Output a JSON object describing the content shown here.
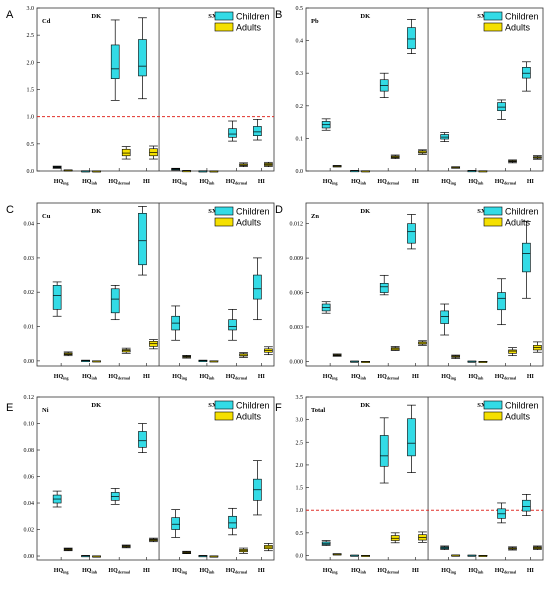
{
  "colors": {
    "children": "#33dbe6",
    "adults": "#f5e000",
    "reference": "#e0302a",
    "frame": "#333333"
  },
  "chart_data": [
    {
      "type": "box",
      "panel": "A",
      "metal": "Cd",
      "sections": [
        "DK",
        "SXC"
      ],
      "categories": [
        "HQing",
        "HQinh",
        "HQdermal",
        "HI"
      ],
      "legend": [
        "Children",
        "Adults"
      ],
      "ylim": [
        0,
        3.0
      ],
      "yticks": [
        0.0,
        0.5,
        1.0,
        1.5,
        2.0,
        2.5,
        3.0
      ],
      "ytick_labels": [
        "0.0",
        "0.5",
        "1.0",
        "1.5",
        "2.0",
        "2.5",
        "3.0"
      ],
      "reference_line": 1.0,
      "series": [
        {
          "name": "Children",
          "boxes": [
            [
              0.05,
              0.06,
              0.07,
              0.08,
              0.09
            ],
            [
              0.001,
              0.002,
              0.002,
              0.003,
              0.004
            ],
            [
              1.3,
              1.7,
              1.88,
              2.32,
              2.78
            ],
            [
              1.33,
              1.75,
              1.93,
              2.42,
              2.82
            ],
            [
              0.02,
              0.03,
              0.03,
              0.04,
              0.05
            ],
            [
              0.001,
              0.002,
              0.002,
              0.003,
              0.004
            ],
            [
              0.55,
              0.62,
              0.68,
              0.78,
              0.92
            ],
            [
              0.57,
              0.65,
              0.72,
              0.82,
              0.95
            ]
          ]
        },
        {
          "name": "Adults",
          "boxes": [
            [
              0.01,
              0.01,
              0.015,
              0.02,
              0.02
            ],
            [
              0.001,
              0.001,
              0.001,
              0.002,
              0.002
            ],
            [
              0.22,
              0.28,
              0.33,
              0.4,
              0.45
            ],
            [
              0.22,
              0.28,
              0.34,
              0.41,
              0.46
            ],
            [
              0.004,
              0.005,
              0.006,
              0.007,
              0.008
            ],
            [
              0.001,
              0.001,
              0.001,
              0.002,
              0.002
            ],
            [
              0.08,
              0.1,
              0.11,
              0.13,
              0.15
            ],
            [
              0.08,
              0.1,
              0.12,
              0.14,
              0.16
            ]
          ]
        }
      ]
    },
    {
      "type": "box",
      "panel": "B",
      "metal": "Pb",
      "sections": [
        "DK",
        "SXC"
      ],
      "categories": [
        "HQing",
        "HQinh",
        "HQdermal",
        "HI"
      ],
      "legend": [
        "Children",
        "Adults"
      ],
      "ylim": [
        0,
        0.5
      ],
      "yticks": [
        0.0,
        0.1,
        0.2,
        0.3,
        0.4,
        0.5
      ],
      "ytick_labels": [
        "0.0",
        "0.1",
        "0.2",
        "0.3",
        "0.4",
        "0.5"
      ],
      "series": [
        {
          "name": "Children",
          "boxes": [
            [
              0.125,
              0.132,
              0.142,
              0.152,
              0.16
            ],
            [
              0.0005,
              0.0008,
              0.001,
              0.0012,
              0.0015
            ],
            [
              0.225,
              0.245,
              0.262,
              0.28,
              0.3
            ],
            [
              0.36,
              0.375,
              0.405,
              0.44,
              0.465
            ],
            [
              0.09,
              0.098,
              0.104,
              0.112,
              0.118
            ],
            [
              0.0005,
              0.0008,
              0.001,
              0.0012,
              0.0015
            ],
            [
              0.158,
              0.185,
              0.196,
              0.21,
              0.218
            ],
            [
              0.245,
              0.285,
              0.3,
              0.318,
              0.335
            ]
          ]
        },
        {
          "name": "Adults",
          "boxes": [
            [
              0.013,
              0.014,
              0.015,
              0.016,
              0.017
            ],
            [
              0.0003,
              0.0004,
              0.0005,
              0.0006,
              0.0007
            ],
            [
              0.038,
              0.041,
              0.043,
              0.046,
              0.049
            ],
            [
              0.051,
              0.055,
              0.058,
              0.062,
              0.065
            ],
            [
              0.009,
              0.01,
              0.011,
              0.012,
              0.013
            ],
            [
              0.0003,
              0.0004,
              0.0005,
              0.0006,
              0.0007
            ],
            [
              0.025,
              0.028,
              0.03,
              0.032,
              0.034
            ],
            [
              0.036,
              0.039,
              0.041,
              0.044,
              0.047
            ]
          ]
        }
      ]
    },
    {
      "type": "box",
      "panel": "C",
      "metal": "Cu",
      "sections": [
        "DK",
        "SXC"
      ],
      "categories": [
        "HQing",
        "HQinh",
        "HQdermal",
        "HI"
      ],
      "legend": [
        "Children",
        "Adults"
      ],
      "ylim": [
        -0.0015,
        0.046
      ],
      "yticks": [
        0.0,
        0.01,
        0.02,
        0.03,
        0.04
      ],
      "ytick_labels": [
        "0.00",
        "0.01",
        "0.02",
        "0.03",
        "0.04"
      ],
      "series": [
        {
          "name": "Children",
          "boxes": [
            [
              0.013,
              0.015,
              0.019,
              0.022,
              0.023
            ],
            [
              0.0,
              0.0,
              0.0001,
              0.0001,
              0.0002
            ],
            [
              0.012,
              0.014,
              0.018,
              0.021,
              0.022
            ],
            [
              0.025,
              0.028,
              0.035,
              0.043,
              0.045
            ],
            [
              0.006,
              0.009,
              0.011,
              0.013,
              0.016
            ],
            [
              0.0,
              0.0,
              0.0001,
              0.0001,
              0.0002
            ],
            [
              0.006,
              0.009,
              0.01,
              0.012,
              0.015
            ],
            [
              0.012,
              0.018,
              0.021,
              0.025,
              0.03
            ]
          ]
        },
        {
          "name": "Adults",
          "boxes": [
            [
              0.0015,
              0.0018,
              0.002,
              0.0023,
              0.0026
            ],
            [
              0.0,
              0.0,
              0.0,
              0.0,
              0.0
            ],
            [
              0.0022,
              0.0026,
              0.003,
              0.0033,
              0.0037
            ],
            [
              0.0035,
              0.0042,
              0.005,
              0.0057,
              0.0062
            ],
            [
              0.0008,
              0.001,
              0.0012,
              0.0014,
              0.0016
            ],
            [
              0.0,
              0.0,
              0.0,
              0.0,
              0.0
            ],
            [
              0.001,
              0.0014,
              0.0017,
              0.0021,
              0.0024
            ],
            [
              0.0018,
              0.0025,
              0.003,
              0.0035,
              0.0041
            ]
          ]
        }
      ]
    },
    {
      "type": "box",
      "panel": "D",
      "metal": "Zn",
      "sections": [
        "DK",
        "SXC"
      ],
      "categories": [
        "HQing",
        "HQinh",
        "HQdermal",
        "HI"
      ],
      "legend": [
        "Children",
        "Adults"
      ],
      "ylim": [
        -0.0004,
        0.0138
      ],
      "yticks": [
        0.0,
        0.003,
        0.006,
        0.009,
        0.012
      ],
      "ytick_labels": [
        "0.000",
        "0.003",
        "0.006",
        "0.009",
        "0.012"
      ],
      "series": [
        {
          "name": "Children",
          "boxes": [
            [
              0.0042,
              0.0044,
              0.0047,
              0.005,
              0.0052
            ],
            [
              0.0,
              0.0,
              1e-05,
              2e-05,
              3e-05
            ],
            [
              0.0058,
              0.006,
              0.0065,
              0.0068,
              0.0075
            ],
            [
              0.0098,
              0.0103,
              0.0113,
              0.012,
              0.0128
            ],
            [
              0.0023,
              0.0033,
              0.0039,
              0.0044,
              0.005
            ],
            [
              0.0,
              0.0,
              1e-05,
              2e-05,
              3e-05
            ],
            [
              0.0032,
              0.0045,
              0.0055,
              0.006,
              0.0072
            ],
            [
              0.0055,
              0.0078,
              0.0094,
              0.0103,
              0.0122
            ]
          ]
        },
        {
          "name": "Adults",
          "boxes": [
            [
              0.00045,
              0.0005,
              0.00055,
              0.0006,
              0.00065
            ],
            [
              0.0,
              0.0,
              0.0,
              0.0,
              0.0
            ],
            [
              0.00095,
              0.001,
              0.0011,
              0.0012,
              0.0013
            ],
            [
              0.0014,
              0.0015,
              0.0016,
              0.0017,
              0.0018
            ],
            [
              0.00025,
              0.00035,
              0.0004,
              0.00048,
              0.00055
            ],
            [
              0.0,
              0.0,
              0.0,
              0.0,
              0.0
            ],
            [
              0.0005,
              0.0007,
              0.0009,
              0.001,
              0.0012
            ],
            [
              0.0008,
              0.001,
              0.0012,
              0.0014,
              0.0017
            ]
          ]
        }
      ]
    },
    {
      "type": "box",
      "panel": "E",
      "metal": "Ni",
      "sections": [
        "DK",
        "SXC"
      ],
      "categories": [
        "HQing",
        "HQinh",
        "HQdermal",
        "HI"
      ],
      "legend": [
        "Children",
        "Adults"
      ],
      "ylim": [
        -0.003,
        0.12
      ],
      "yticks": [
        0.0,
        0.02,
        0.04,
        0.06,
        0.08,
        0.1,
        0.12
      ],
      "ytick_labels": [
        "0.00",
        "0.02",
        "0.04",
        "0.06",
        "0.08",
        "0.10",
        "0.12"
      ],
      "series": [
        {
          "name": "Children",
          "boxes": [
            [
              0.037,
              0.04,
              0.043,
              0.046,
              0.049
            ],
            [
              0.0,
              0.0001,
              0.0002,
              0.0003,
              0.0004
            ],
            [
              0.039,
              0.042,
              0.045,
              0.048,
              0.051
            ],
            [
              0.078,
              0.082,
              0.087,
              0.094,
              0.1
            ],
            [
              0.014,
              0.02,
              0.024,
              0.029,
              0.035
            ],
            [
              0.0,
              0.0001,
              0.0002,
              0.0003,
              0.0004
            ],
            [
              0.016,
              0.021,
              0.025,
              0.03,
              0.036
            ],
            [
              0.031,
              0.042,
              0.05,
              0.058,
              0.072
            ]
          ]
        },
        {
          "name": "Adults",
          "boxes": [
            [
              0.004,
              0.0045,
              0.005,
              0.0055,
              0.006
            ],
            [
              0.0,
              0.0,
              0.0,
              0.0,
              0.0
            ],
            [
              0.0062,
              0.0068,
              0.0072,
              0.0078,
              0.0083
            ],
            [
              0.0108,
              0.0115,
              0.0122,
              0.0128,
              0.0135
            ],
            [
              0.0018,
              0.0023,
              0.0027,
              0.0031,
              0.0036
            ],
            [
              0.0,
              0.0,
              0.0,
              0.0,
              0.0
            ],
            [
              0.002,
              0.0032,
              0.004,
              0.005,
              0.006
            ],
            [
              0.004,
              0.0055,
              0.0068,
              0.008,
              0.0095
            ]
          ]
        }
      ]
    },
    {
      "type": "box",
      "panel": "F",
      "metal": "Total",
      "sections": [
        "DK",
        "SXC"
      ],
      "categories": [
        "HQing",
        "HQinh",
        "HQdermal",
        "HI"
      ],
      "legend": [
        "Children",
        "Adults"
      ],
      "ylim": [
        -0.1,
        3.5
      ],
      "yticks": [
        0.0,
        0.5,
        1.0,
        1.5,
        2.0,
        2.5,
        3.0,
        3.5
      ],
      "ytick_labels": [
        "0.0",
        "0.5",
        "1.0",
        "1.5",
        "2.0",
        "2.5",
        "3.0",
        "3.5"
      ],
      "reference_line": 1.0,
      "series": [
        {
          "name": "Children",
          "boxes": [
            [
              0.22,
              0.24,
              0.27,
              0.3,
              0.33
            ],
            [
              0.003,
              0.004,
              0.005,
              0.006,
              0.007
            ],
            [
              1.6,
              1.97,
              2.2,
              2.65,
              3.04
            ],
            [
              1.83,
              2.2,
              2.48,
              3.02,
              3.32
            ],
            [
              0.13,
              0.15,
              0.17,
              0.19,
              0.21
            ],
            [
              0.003,
              0.004,
              0.005,
              0.006,
              0.007
            ],
            [
              0.72,
              0.82,
              0.92,
              1.03,
              1.16
            ],
            [
              0.88,
              0.98,
              1.08,
              1.22,
              1.35
            ]
          ]
        },
        {
          "name": "Adults",
          "boxes": [
            [
              0.02,
              0.025,
              0.03,
              0.035,
              0.04
            ],
            [
              0.0005,
              0.0008,
              0.001,
              0.0012,
              0.0015
            ],
            [
              0.28,
              0.33,
              0.38,
              0.44,
              0.5
            ],
            [
              0.29,
              0.34,
              0.4,
              0.46,
              0.52
            ],
            [
              0.005,
              0.006,
              0.007,
              0.008,
              0.009
            ],
            [
              0.0005,
              0.0008,
              0.001,
              0.0012,
              0.0015
            ],
            [
              0.12,
              0.14,
              0.15,
              0.17,
              0.19
            ],
            [
              0.13,
              0.15,
              0.17,
              0.19,
              0.21
            ]
          ]
        }
      ]
    }
  ]
}
